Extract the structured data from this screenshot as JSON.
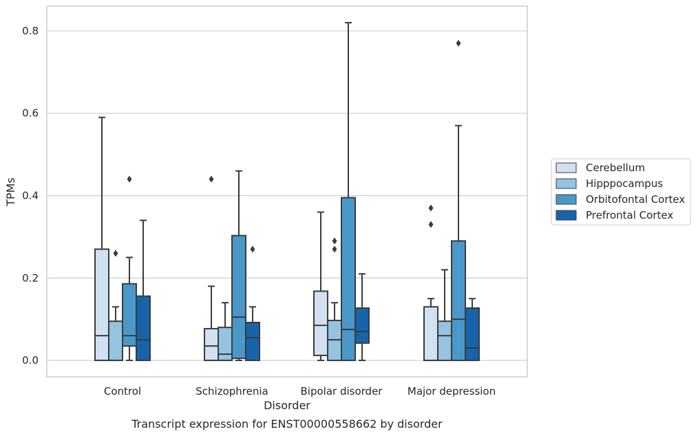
{
  "chart_data": {
    "type": "boxplot",
    "title": "",
    "caption": "Transcript expression for ENST00000558662 by disorder",
    "xlabel": "Disorder",
    "ylabel": "TPMs",
    "ylim": [
      -0.04,
      0.86
    ],
    "yticks": [
      0.0,
      0.2,
      0.4,
      0.6,
      0.8
    ],
    "ytick_labels": [
      "0.0",
      "0.2",
      "0.4",
      "0.6",
      "0.8"
    ],
    "categories": [
      "Control",
      "Schizophrenia",
      "Bipolar disorder",
      "Major depression"
    ],
    "grid": "horizontal",
    "legend_position": "right",
    "series": [
      {
        "name": "Cerebellum",
        "color": "#d0e1f2",
        "boxes": [
          {
            "whislo": 0.0,
            "q1": 0.0,
            "med": 0.06,
            "q3": 0.27,
            "whishi": 0.59,
            "fliers": []
          },
          {
            "whislo": 0.0,
            "q1": 0.0,
            "med": 0.035,
            "q3": 0.077,
            "whishi": 0.18,
            "fliers": [
              0.44
            ]
          },
          {
            "whislo": 0.0,
            "q1": 0.012,
            "med": 0.085,
            "q3": 0.168,
            "whishi": 0.36,
            "fliers": []
          },
          {
            "whislo": 0.0,
            "q1": 0.0,
            "med": 0.0,
            "q3": 0.13,
            "whishi": 0.15,
            "fliers": [
              0.33,
              0.37
            ]
          }
        ]
      },
      {
        "name": "Hipppocampus",
        "color": "#94c4df",
        "boxes": [
          {
            "whislo": 0.0,
            "q1": 0.0,
            "med": 0.0,
            "q3": 0.095,
            "whishi": 0.13,
            "fliers": [
              0.26
            ]
          },
          {
            "whislo": 0.0,
            "q1": 0.0,
            "med": 0.015,
            "q3": 0.08,
            "whishi": 0.14,
            "fliers": []
          },
          {
            "whislo": 0.0,
            "q1": 0.0,
            "med": 0.05,
            "q3": 0.097,
            "whishi": 0.14,
            "fliers": [
              0.27,
              0.29
            ]
          },
          {
            "whislo": 0.0,
            "q1": 0.0,
            "med": 0.06,
            "q3": 0.095,
            "whishi": 0.22,
            "fliers": []
          }
        ]
      },
      {
        "name": "Orbitofontal Cortex",
        "color": "#4a98c9",
        "boxes": [
          {
            "whislo": 0.0,
            "q1": 0.035,
            "med": 0.06,
            "q3": 0.186,
            "whishi": 0.25,
            "fliers": [
              0.44
            ]
          },
          {
            "whislo": 0.0,
            "q1": 0.005,
            "med": 0.105,
            "q3": 0.303,
            "whishi": 0.46,
            "fliers": []
          },
          {
            "whislo": 0.0,
            "q1": 0.0,
            "med": 0.075,
            "q3": 0.395,
            "whishi": 0.82,
            "fliers": []
          },
          {
            "whislo": 0.0,
            "q1": 0.0,
            "med": 0.1,
            "q3": 0.29,
            "whishi": 0.57,
            "fliers": [
              0.77
            ]
          }
        ]
      },
      {
        "name": "Prefrontal Cortex",
        "color": "#1764ab",
        "boxes": [
          {
            "whislo": 0.0,
            "q1": 0.0,
            "med": 0.05,
            "q3": 0.156,
            "whishi": 0.34,
            "fliers": []
          },
          {
            "whislo": 0.0,
            "q1": 0.0,
            "med": 0.055,
            "q3": 0.092,
            "whishi": 0.13,
            "fliers": [
              0.27
            ]
          },
          {
            "whislo": 0.0,
            "q1": 0.042,
            "med": 0.07,
            "q3": 0.127,
            "whishi": 0.21,
            "fliers": []
          },
          {
            "whislo": 0.0,
            "q1": 0.0,
            "med": 0.03,
            "q3": 0.127,
            "whishi": 0.15,
            "fliers": []
          }
        ]
      }
    ]
  }
}
